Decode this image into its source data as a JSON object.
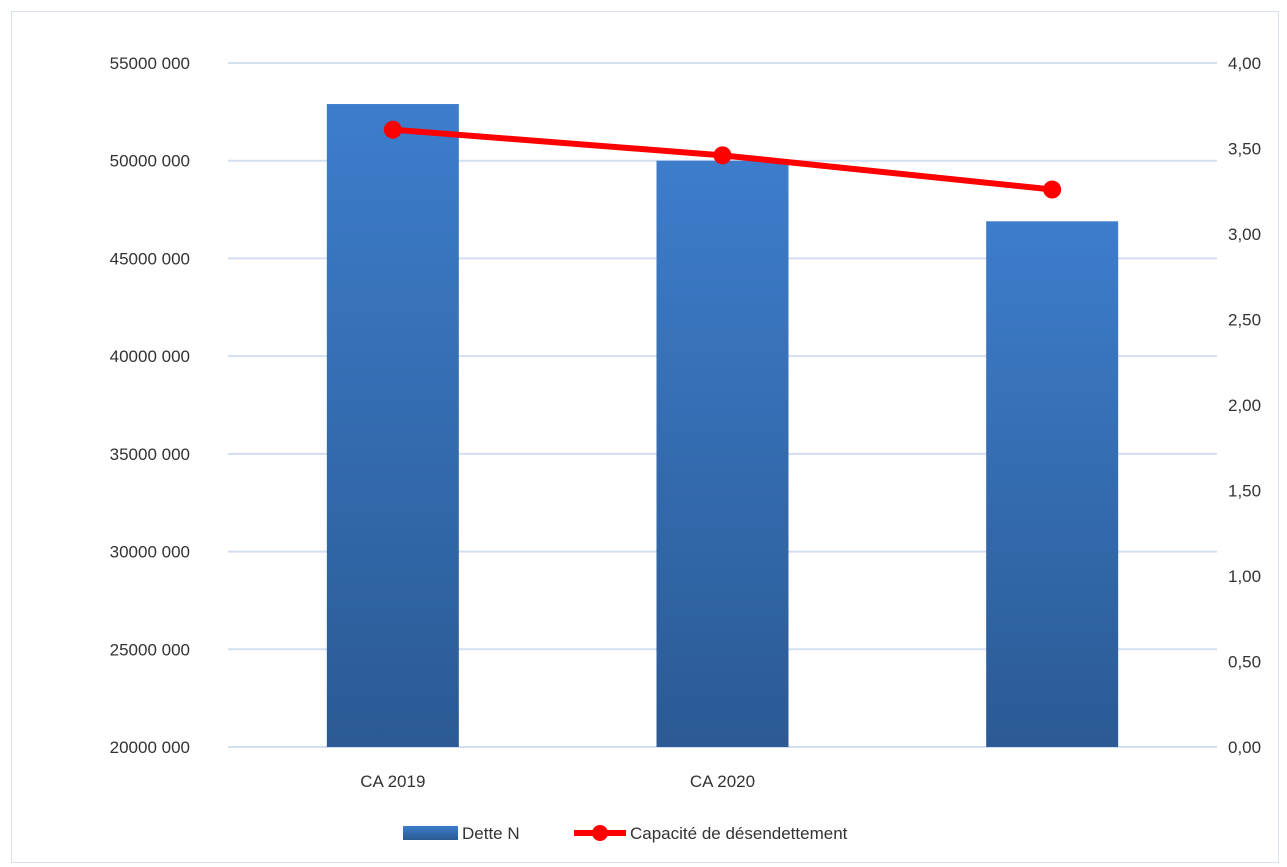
{
  "chart_data": {
    "type": "bar",
    "categories": [
      "CA 2019",
      "CA 2020",
      ""
    ],
    "series": [
      {
        "name": "Dette N",
        "type": "bar",
        "axis": "left",
        "color": "#3a78c4",
        "values": [
          52900000,
          50000000,
          46900000
        ]
      },
      {
        "name": "Capacité de désendettement",
        "type": "line",
        "axis": "right",
        "color": "#ff0000",
        "values": [
          3.61,
          3.46,
          3.26
        ]
      }
    ],
    "y_left": {
      "min": 20000000,
      "max": 55000000,
      "step": 5000000,
      "tick_labels": [
        "20000 000",
        "25000 000",
        "30000 000",
        "35000 000",
        "40000 000",
        "45000 000",
        "50000 000",
        "55000 000"
      ]
    },
    "y_right": {
      "min": 0,
      "max": 4,
      "step": 0.5,
      "tick_labels": [
        "0,00",
        "0,50",
        "1,00",
        "1,50",
        "2,00",
        "2,50",
        "3,00",
        "3,50",
        "4,00"
      ]
    },
    "grid": true,
    "legend_position": "bottom",
    "colors": {
      "bar_top": "#3d7dcc",
      "bar_bottom": "#2b5a94",
      "line": "#ff0000",
      "grid": "#d3dff0"
    }
  }
}
